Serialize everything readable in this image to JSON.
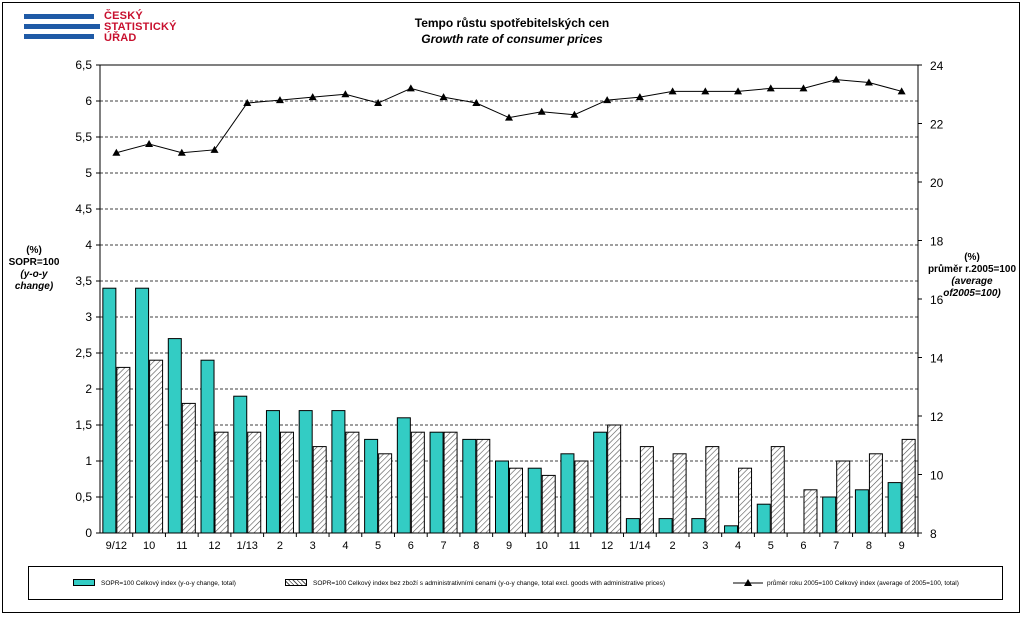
{
  "header": {
    "logo_lines": [
      "ČESKÝ",
      "STATISTICKÝ",
      "ÚŘAD"
    ],
    "title": "Tempo růstu spotřebitelských  cen",
    "subtitle": "Growth rate of consumer  prices"
  },
  "axes": {
    "left_label": [
      "(%)",
      "SOPR=100",
      "(y-o-y change)"
    ],
    "right_label": [
      "(%)",
      "průměr r.2005=100",
      "(average of2005=100)"
    ],
    "left_ticks": [
      "0",
      "0,5",
      "1",
      "1,5",
      "2",
      "2,5",
      "3",
      "3,5",
      "4",
      "4,5",
      "5",
      "5,5",
      "6",
      "6,5"
    ],
    "right_ticks": [
      "8",
      "10",
      "12",
      "14",
      "16",
      "18",
      "20",
      "22",
      "24"
    ]
  },
  "legend": {
    "item1": "SOPR=100  Celkový  index  (y-o-y change,  total)",
    "item2": "SOPR=100  Celkový  index  bez  zboží  s  administrativními  cenami  (y-o-y change,  total  excl.  goods  with administrative  prices)",
    "item3": "průměr roku  2005=100   Celkový  index  (average  of  2005=100,  total)"
  },
  "colors": {
    "bar_total": "#33ccc4",
    "bar_excl": "hatched white",
    "line": "#000000",
    "logo_red": "#c8102e",
    "logo_blue": "#1f5aa6"
  },
  "chart_data": {
    "type": "bar",
    "categories": [
      "9/12",
      "10",
      "11",
      "12",
      "1/13",
      "2",
      "3",
      "4",
      "5",
      "6",
      "7",
      "8",
      "9",
      "10",
      "11",
      "12",
      "1/14",
      "2",
      "3",
      "4",
      "5",
      "6",
      "7",
      "8",
      "9"
    ],
    "series": [
      {
        "name": "SOPR=100  Celkový  index  (y-o-y change,  total)",
        "axis": "left",
        "type": "bar",
        "values": [
          3.4,
          3.4,
          2.7,
          2.4,
          1.9,
          1.7,
          1.7,
          1.7,
          1.3,
          1.6,
          1.4,
          1.3,
          1.0,
          0.9,
          1.1,
          1.4,
          0.2,
          0.2,
          0.2,
          0.1,
          0.4,
          0.0,
          0.5,
          0.6,
          0.7
        ]
      },
      {
        "name": "SOPR=100  Celkový  index  bez  zboží  s  administrativními  cenami  (y-o-y change,  total  excl.  goods  with administrative  prices)",
        "axis": "left",
        "type": "bar",
        "values": [
          2.3,
          2.4,
          1.8,
          1.4,
          1.4,
          1.4,
          1.2,
          1.4,
          1.1,
          1.4,
          1.4,
          1.3,
          0.9,
          0.8,
          1.0,
          1.5,
          1.2,
          1.1,
          1.2,
          0.9,
          1.2,
          0.6,
          1.0,
          1.1,
          1.3
        ]
      },
      {
        "name": "průměr roku  2005=100   Celkový  index  (average  of  2005=100,  total)",
        "axis": "right",
        "type": "line",
        "values": [
          21.0,
          21.3,
          21.0,
          21.1,
          22.7,
          22.8,
          22.9,
          23.0,
          22.7,
          23.2,
          22.9,
          22.7,
          22.2,
          22.4,
          22.3,
          22.8,
          22.9,
          23.1,
          23.1,
          23.1,
          23.2,
          23.2,
          23.5,
          23.4,
          23.1
        ]
      }
    ],
    "ylim_left": [
      0,
      6.5
    ],
    "ylim_right": [
      8,
      24
    ],
    "grid": "horizontal dashed",
    "legend_position": "bottom"
  }
}
